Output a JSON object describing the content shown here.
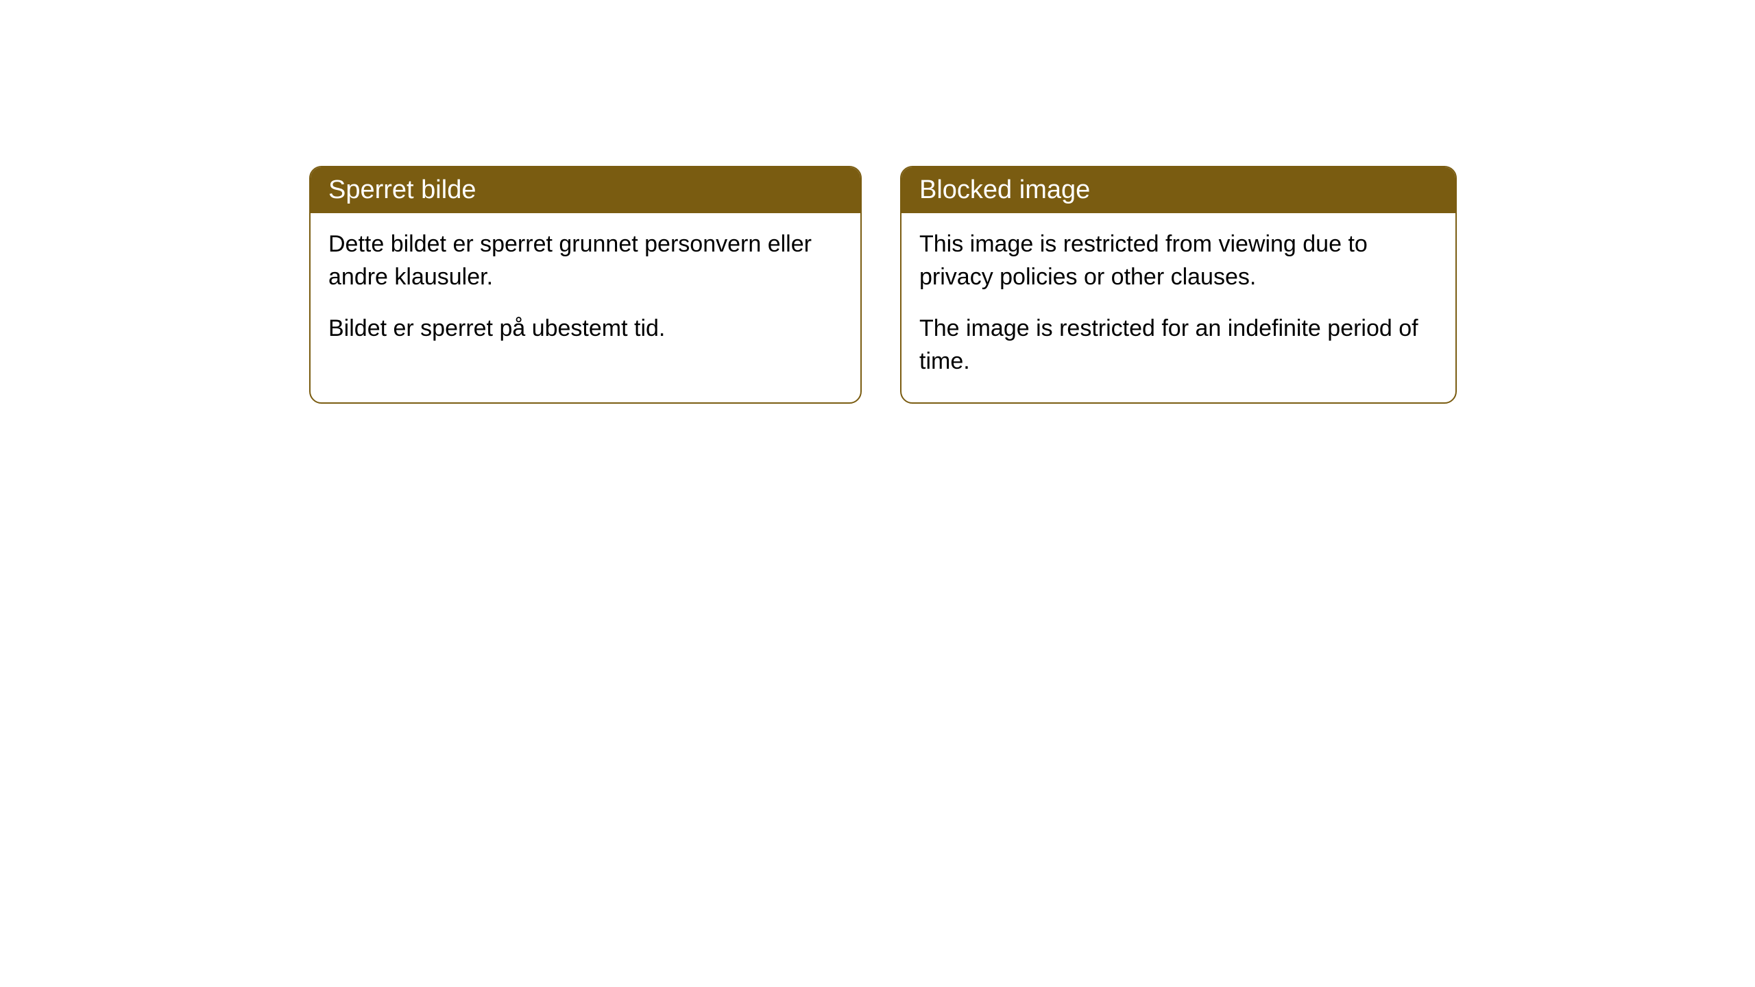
{
  "cards": {
    "norwegian": {
      "title": "Sperret bilde",
      "paragraph1": "Dette bildet er sperret grunnet personvern eller andre klausuler.",
      "paragraph2": "Bildet er sperret på ubestemt tid."
    },
    "english": {
      "title": "Blocked image",
      "paragraph1": "This image is restricted from viewing due to privacy policies or other clauses.",
      "paragraph2": "The image is restricted for an indefinite period of time."
    }
  },
  "styling": {
    "header_background": "#7a5c11",
    "header_text_color": "#ffffff",
    "border_color": "#7a5c11",
    "body_background": "#ffffff",
    "body_text_color": "#000000",
    "border_radius": 18,
    "header_fontsize": 38,
    "body_fontsize": 34
  }
}
